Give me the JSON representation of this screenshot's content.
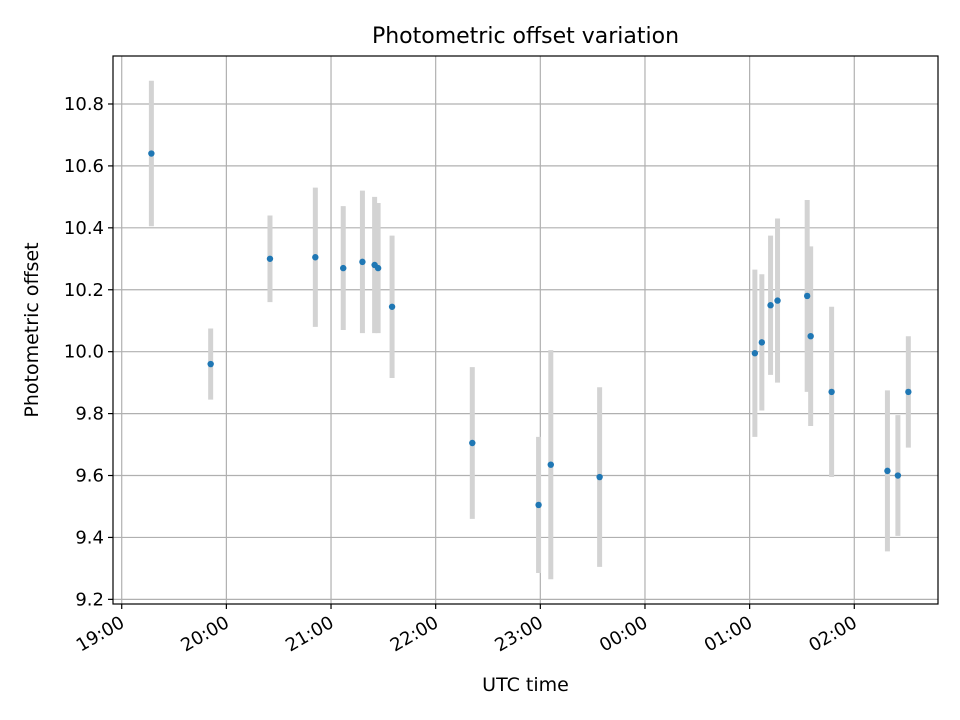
{
  "chart_data": {
    "type": "scatter",
    "title": "Photometric offset variation",
    "xlabel": "UTC time",
    "ylabel": "Photometric offset",
    "x_axis": {
      "range": [
        "18:55",
        "02:48"
      ],
      "ticks": [
        "19:00",
        "20:00",
        "21:00",
        "22:00",
        "23:00",
        "00:00",
        "01:00",
        "02:00"
      ]
    },
    "y_axis": {
      "range": [
        9.185,
        10.955
      ],
      "ticks": [
        "9.2",
        "9.4",
        "9.6",
        "9.8",
        "10.0",
        "10.2",
        "10.4",
        "10.6",
        "10.8"
      ]
    },
    "grid": true,
    "colors": {
      "marker": "#1f77b4",
      "errorbar": "#d3d3d3",
      "grid": "#b0b0b0"
    },
    "series": [
      {
        "points": [
          {
            "x": "19:17",
            "y": 10.64,
            "err": 0.235
          },
          {
            "x": "19:51",
            "y": 9.96,
            "err": 0.115
          },
          {
            "x": "20:25",
            "y": 10.3,
            "err": 0.14
          },
          {
            "x": "20:51",
            "y": 10.305,
            "err": 0.225
          },
          {
            "x": "21:07",
            "y": 10.27,
            "err": 0.2
          },
          {
            "x": "21:18",
            "y": 10.29,
            "err": 0.23
          },
          {
            "x": "21:25",
            "y": 10.28,
            "err": 0.22
          },
          {
            "x": "21:27",
            "y": 10.27,
            "err": 0.21
          },
          {
            "x": "21:35",
            "y": 10.145,
            "err": 0.23
          },
          {
            "x": "22:21",
            "y": 9.705,
            "err": 0.245
          },
          {
            "x": "22:59",
            "y": 9.505,
            "err": 0.22
          },
          {
            "x": "23:06",
            "y": 9.635,
            "err": 0.37
          },
          {
            "x": "23:34",
            "y": 9.595,
            "err": 0.29
          },
          {
            "x": "01:03",
            "y": 9.995,
            "err": 0.27
          },
          {
            "x": "01:07",
            "y": 10.03,
            "err": 0.22
          },
          {
            "x": "01:12",
            "y": 10.15,
            "err": 0.225
          },
          {
            "x": "01:16",
            "y": 10.165,
            "err": 0.265
          },
          {
            "x": "01:33",
            "y": 10.18,
            "err": 0.31
          },
          {
            "x": "01:35",
            "y": 10.05,
            "err": 0.29
          },
          {
            "x": "01:47",
            "y": 9.87,
            "err": 0.275
          },
          {
            "x": "02:19",
            "y": 9.615,
            "err": 0.26
          },
          {
            "x": "02:25",
            "y": 9.6,
            "err": 0.195
          },
          {
            "x": "02:31",
            "y": 9.87,
            "err": 0.18
          }
        ]
      }
    ]
  }
}
